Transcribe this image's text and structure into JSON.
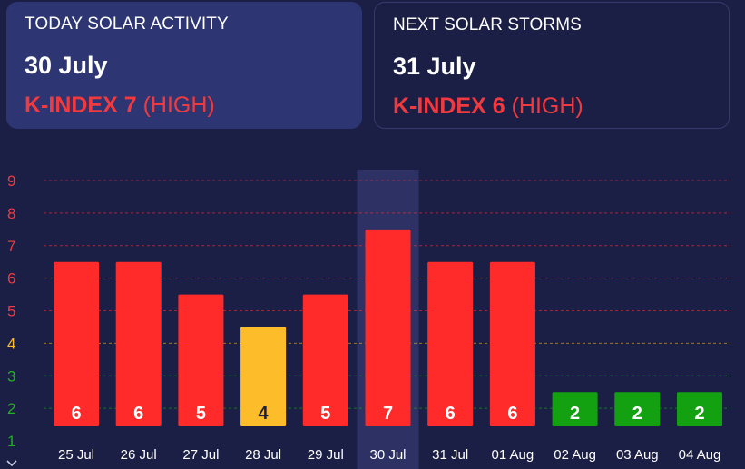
{
  "today_card": {
    "title": "TODAY SOLAR ACTIVITY",
    "date": "30 July",
    "kindex_label": "K-INDEX 7",
    "level": "(HIGH)"
  },
  "next_card": {
    "title": "NEXT SOLAR STORMS",
    "date": "31 July",
    "kindex_label": "K-INDEX 6",
    "level": "(HIGH)"
  },
  "chart_data": {
    "type": "bar",
    "categories": [
      "25 Jul",
      "26 Jul",
      "27 Jul",
      "28 Jul",
      "29 Jul",
      "30 Jul",
      "31 Jul",
      "01 Aug",
      "02 Aug",
      "03 Aug",
      "04 Aug"
    ],
    "values": [
      6,
      6,
      5,
      4,
      5,
      7,
      6,
      6,
      2,
      2,
      2
    ],
    "ylim": [
      1,
      9
    ],
    "y_ticks": [
      "1",
      "2",
      "3",
      "4",
      "5",
      "6",
      "7",
      "8",
      "9"
    ],
    "highlighted_category": "30 Jul",
    "grid": true,
    "colors": {
      "high": "#ff2b2b",
      "moderate": "#fdbd2a",
      "low": "#13a112",
      "tick_high": "#f03a3f",
      "tick_moderate": "#fbbd2e",
      "tick_low": "#20b020",
      "highlight": "#2e3163",
      "background": "#1c1f45"
    }
  }
}
